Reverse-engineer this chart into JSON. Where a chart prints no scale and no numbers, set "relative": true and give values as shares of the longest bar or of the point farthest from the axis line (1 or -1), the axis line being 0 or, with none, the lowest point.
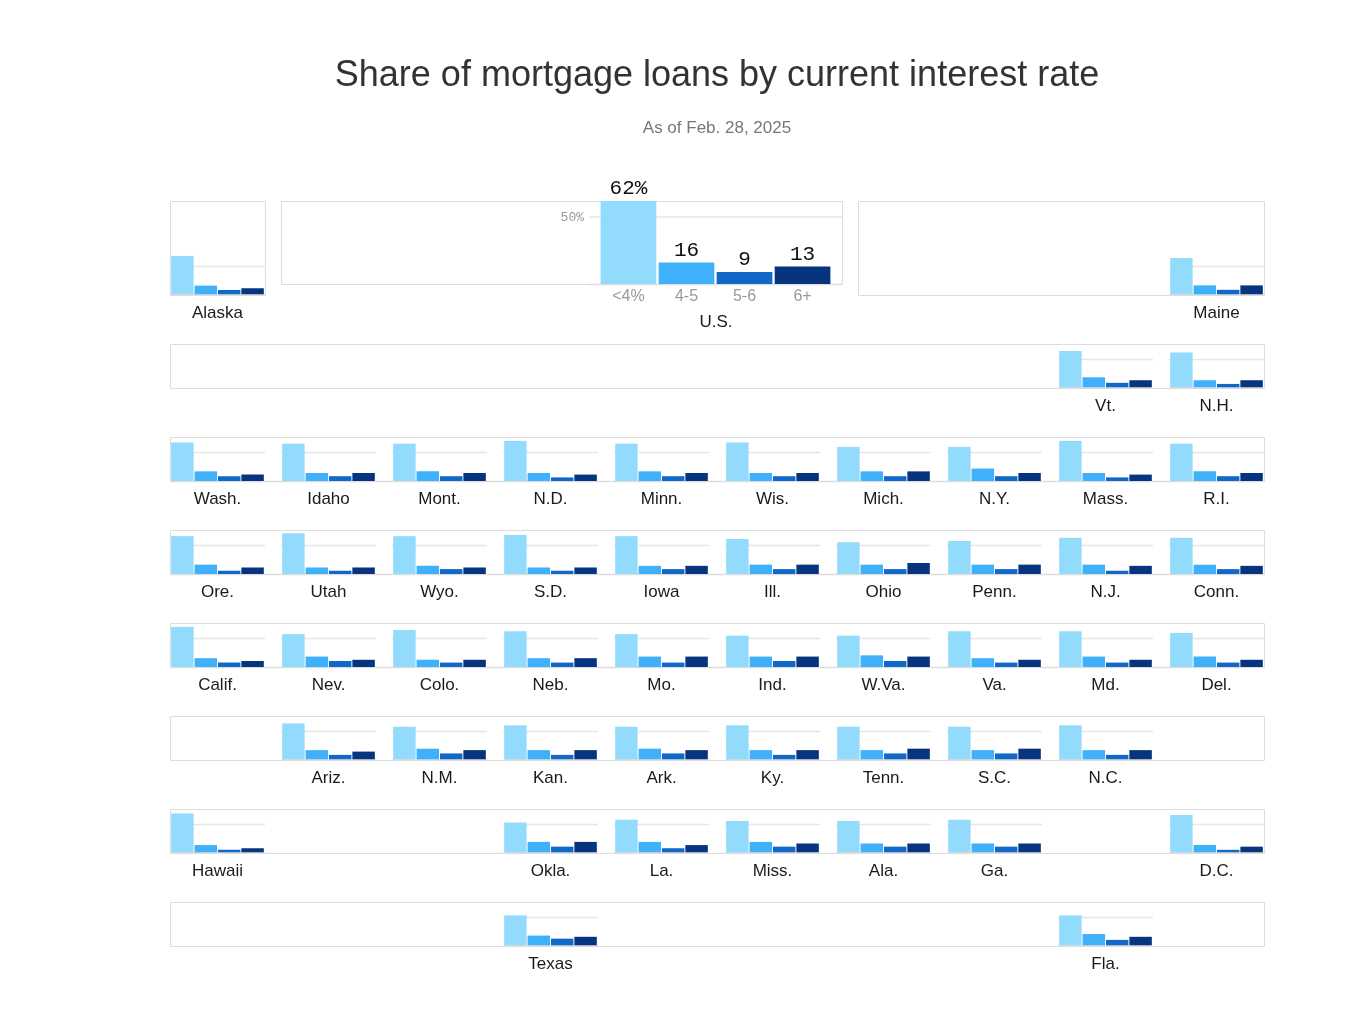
{
  "chart_data": [
    {
      "type": "bar",
      "relative": true,
      "categories": [
        "Alaska"
      ],
      "series": [
        {
          "color": "#93dbfd",
          "values": [
            1
          ]
        },
        {
          "color": "#3fb1fa",
          "values": [
            0.24
          ]
        },
        {
          "color": "#1068c8",
          "values": [
            0.13
          ]
        },
        {
          "color": "#07347f",
          "values": [
            0.17
          ]
        }
      ],
      "ref_lines": [
        {
          "axis": "y",
          "value": 0.73,
          "color": "#e6e6e6"
        },
        {
          "axis": "y",
          "value": 0,
          "color": "#dddddd"
        }
      ]
    },
    {
      "type": "bar",
      "title": "Share of mortgage loans by current interest rate",
      "subtitle": "As of Feb. 28, 2025",
      "xlabel": "U.S.",
      "categories": [
        "<4%",
        "4-5",
        "5-6",
        "6+"
      ],
      "values": [
        62,
        16,
        9,
        13
      ],
      "colors": [
        "#93dbfd",
        "#3fb1fa",
        "#1068c8",
        "#07347f"
      ],
      "value_labels": [
        "62%",
        "16",
        "9",
        "13"
      ],
      "ref_lines": [
        {
          "axis": "y",
          "value": 50,
          "label": "50%",
          "color": "#e6e6e6"
        }
      ]
    },
    {
      "type": "bar",
      "relative": true,
      "categories": [
        "Maine"
      ],
      "series": [
        {
          "color": "#93dbfd",
          "values": [
            1
          ]
        },
        {
          "color": "#3fb1fa",
          "values": [
            0.26
          ]
        },
        {
          "color": "#1068c8",
          "values": [
            0.14
          ]
        },
        {
          "color": "#07347f",
          "values": [
            0.26
          ]
        }
      ],
      "ref_lines": [
        {
          "axis": "y",
          "value": 0.77,
          "color": "#e6e6e6"
        },
        {
          "axis": "y",
          "value": 0,
          "color": "#dddddd"
        }
      ]
    },
    {
      "type": "bar",
      "relative": true,
      "categories": [
        null,
        null,
        null,
        null,
        null,
        null,
        null,
        null,
        "Vt.",
        "N.H."
      ],
      "series": [
        {
          "color": "#93dbfd",
          "values": [
            null,
            null,
            null,
            null,
            null,
            null,
            null,
            null,
            1,
            0.96
          ]
        },
        {
          "color": "#3fb1fa",
          "values": [
            null,
            null,
            null,
            null,
            null,
            null,
            null,
            null,
            0.29,
            0.21
          ]
        },
        {
          "color": "#1068c8",
          "values": [
            null,
            null,
            null,
            null,
            null,
            null,
            null,
            null,
            0.14,
            0.11
          ]
        },
        {
          "color": "#07347f",
          "values": [
            null,
            null,
            null,
            null,
            null,
            null,
            null,
            null,
            0.21,
            0.21
          ]
        }
      ],
      "ref_lines": [
        {
          "axis": "y",
          "value": 0.77,
          "color": "#e6e6e6"
        },
        {
          "axis": "y",
          "value": 0,
          "color": "#dddddd"
        }
      ]
    },
    {
      "type": "bar",
      "relative": true,
      "categories": [
        "Wash.",
        "Idaho",
        "Mont.",
        "N.D.",
        "Minn.",
        "Wis.",
        "Mich.",
        "N.Y.",
        "Mass.",
        "R.I."
      ],
      "series": [
        {
          "color": "#93dbfd",
          "values": [
            0.96,
            0.93,
            0.93,
            1,
            0.93,
            0.96,
            0.85,
            0.85,
            1,
            0.93
          ]
        },
        {
          "color": "#3fb1fa",
          "values": [
            0.24,
            0.2,
            0.24,
            0.2,
            0.24,
            0.2,
            0.24,
            0.31,
            0.2,
            0.24
          ]
        },
        {
          "color": "#1068c8",
          "values": [
            0.12,
            0.12,
            0.12,
            0.09,
            0.12,
            0.12,
            0.12,
            0.12,
            0.09,
            0.12
          ]
        },
        {
          "color": "#07347f",
          "values": [
            0.16,
            0.2,
            0.2,
            0.16,
            0.2,
            0.2,
            0.24,
            0.2,
            0.16,
            0.2
          ]
        }
      ],
      "ref_lines": [
        {
          "axis": "y",
          "value": 0.71,
          "color": "#e6e6e6"
        }
      ]
    },
    {
      "type": "bar",
      "relative": true,
      "categories": [
        "Ore.",
        "Utah",
        "Wyo.",
        "S.D.",
        "Iowa",
        "Ill.",
        "Ohio",
        "Penn.",
        "N.J.",
        "Conn."
      ],
      "series": [
        {
          "color": "#93dbfd",
          "values": [
            0.93,
            1,
            0.93,
            0.96,
            0.93,
            0.86,
            0.78,
            0.81,
            0.89,
            0.89
          ]
        },
        {
          "color": "#3fb1fa",
          "values": [
            0.23,
            0.16,
            0.2,
            0.16,
            0.2,
            0.23,
            0.23,
            0.23,
            0.23,
            0.23
          ]
        },
        {
          "color": "#1068c8",
          "values": [
            0.08,
            0.08,
            0.12,
            0.08,
            0.12,
            0.12,
            0.12,
            0.12,
            0.08,
            0.12
          ]
        },
        {
          "color": "#07347f",
          "values": [
            0.16,
            0.16,
            0.16,
            0.16,
            0.2,
            0.23,
            0.27,
            0.23,
            0.2,
            0.2
          ]
        }
      ],
      "ref_lines": [
        {
          "axis": "y",
          "value": 0.7,
          "color": "#e6e6e6"
        }
      ]
    },
    {
      "type": "bar",
      "relative": true,
      "categories": [
        "Calif.",
        "Nev.",
        "Colo.",
        "Neb.",
        "Mo.",
        "Ind.",
        "W.Va.",
        "Va.",
        "Md.",
        "Del."
      ],
      "series": [
        {
          "color": "#93dbfd",
          "values": [
            1,
            0.82,
            0.92,
            0.89,
            0.82,
            0.78,
            0.78,
            0.89,
            0.89,
            0.85
          ]
        },
        {
          "color": "#3fb1fa",
          "values": [
            0.22,
            0.26,
            0.18,
            0.22,
            0.26,
            0.26,
            0.29,
            0.22,
            0.26,
            0.26
          ]
        },
        {
          "color": "#1068c8",
          "values": [
            0.11,
            0.15,
            0.11,
            0.11,
            0.11,
            0.15,
            0.15,
            0.11,
            0.11,
            0.11
          ]
        },
        {
          "color": "#07347f",
          "values": [
            0.15,
            0.18,
            0.18,
            0.22,
            0.26,
            0.26,
            0.26,
            0.18,
            0.18,
            0.18
          ]
        }
      ],
      "ref_lines": [
        {
          "axis": "y",
          "value": 0.71,
          "color": "#e6e6e6"
        }
      ]
    },
    {
      "type": "bar",
      "relative": true,
      "categories": [
        null,
        "Ariz.",
        "N.M.",
        "Kan.",
        "Ark.",
        "Ky.",
        "Tenn.",
        "S.C.",
        "N.C.",
        null
      ],
      "series": [
        {
          "color": "#93dbfd",
          "values": [
            null,
            1,
            0.91,
            0.95,
            0.91,
            0.95,
            0.91,
            0.91,
            0.95,
            null
          ]
        },
        {
          "color": "#3fb1fa",
          "values": [
            null,
            0.27,
            0.31,
            0.27,
            0.31,
            0.27,
            0.27,
            0.27,
            0.27,
            null
          ]
        },
        {
          "color": "#1068c8",
          "values": [
            null,
            0.14,
            0.18,
            0.14,
            0.18,
            0.14,
            0.18,
            0.18,
            0.14,
            null
          ]
        },
        {
          "color": "#07347f",
          "values": [
            null,
            0.23,
            0.27,
            0.27,
            0.27,
            0.27,
            0.31,
            0.31,
            0.27,
            null
          ]
        }
      ],
      "ref_lines": [
        {
          "axis": "y",
          "value": 0.78,
          "color": "#e6e6e6"
        },
        {
          "axis": "y",
          "value": 0,
          "color": "#dddddd"
        }
      ]
    },
    {
      "type": "bar",
      "relative": true,
      "categories": [
        "Hawaii",
        null,
        null,
        "Okla.",
        "La.",
        "Miss.",
        "Ala.",
        "Ga.",
        null,
        "D.C."
      ],
      "series": [
        {
          "color": "#93dbfd",
          "values": [
            1,
            null,
            null,
            0.77,
            0.84,
            0.81,
            0.81,
            0.84,
            null,
            0.96
          ]
        },
        {
          "color": "#3fb1fa",
          "values": [
            0.2,
            null,
            null,
            0.28,
            0.28,
            0.28,
            0.24,
            0.24,
            null,
            0.2
          ]
        },
        {
          "color": "#1068c8",
          "values": [
            0.08,
            null,
            null,
            0.16,
            0.12,
            0.16,
            0.16,
            0.16,
            null,
            0.08
          ]
        },
        {
          "color": "#07347f",
          "values": [
            0.12,
            null,
            null,
            0.28,
            0.2,
            0.24,
            0.24,
            0.24,
            null,
            0.16
          ]
        }
      ],
      "ref_lines": [
        {
          "axis": "y",
          "value": 0.72,
          "color": "#e6e6e6"
        },
        {
          "axis": "y",
          "value": 0,
          "color": "#dddddd"
        }
      ]
    },
    {
      "type": "bar",
      "relative": true,
      "categories": [
        null,
        null,
        null,
        "Texas",
        null,
        null,
        null,
        null,
        "Fla.",
        null
      ],
      "series": [
        {
          "color": "#93dbfd",
          "values": [
            null,
            null,
            null,
            1,
            null,
            null,
            null,
            null,
            1,
            null
          ]
        },
        {
          "color": "#3fb1fa",
          "values": [
            null,
            null,
            null,
            0.34,
            null,
            null,
            null,
            null,
            0.39,
            null
          ]
        },
        {
          "color": "#1068c8",
          "values": [
            null,
            null,
            null,
            0.24,
            null,
            null,
            null,
            null,
            0.2,
            null
          ]
        },
        {
          "color": "#07347f",
          "values": [
            null,
            null,
            null,
            0.3,
            null,
            null,
            null,
            null,
            0.3,
            null
          ]
        }
      ],
      "ref_lines": [
        {
          "axis": "y",
          "value": 0.93,
          "color": "#e6e6e6"
        },
        {
          "axis": "y",
          "value": 0,
          "color": "#dddddd"
        }
      ]
    }
  ]
}
